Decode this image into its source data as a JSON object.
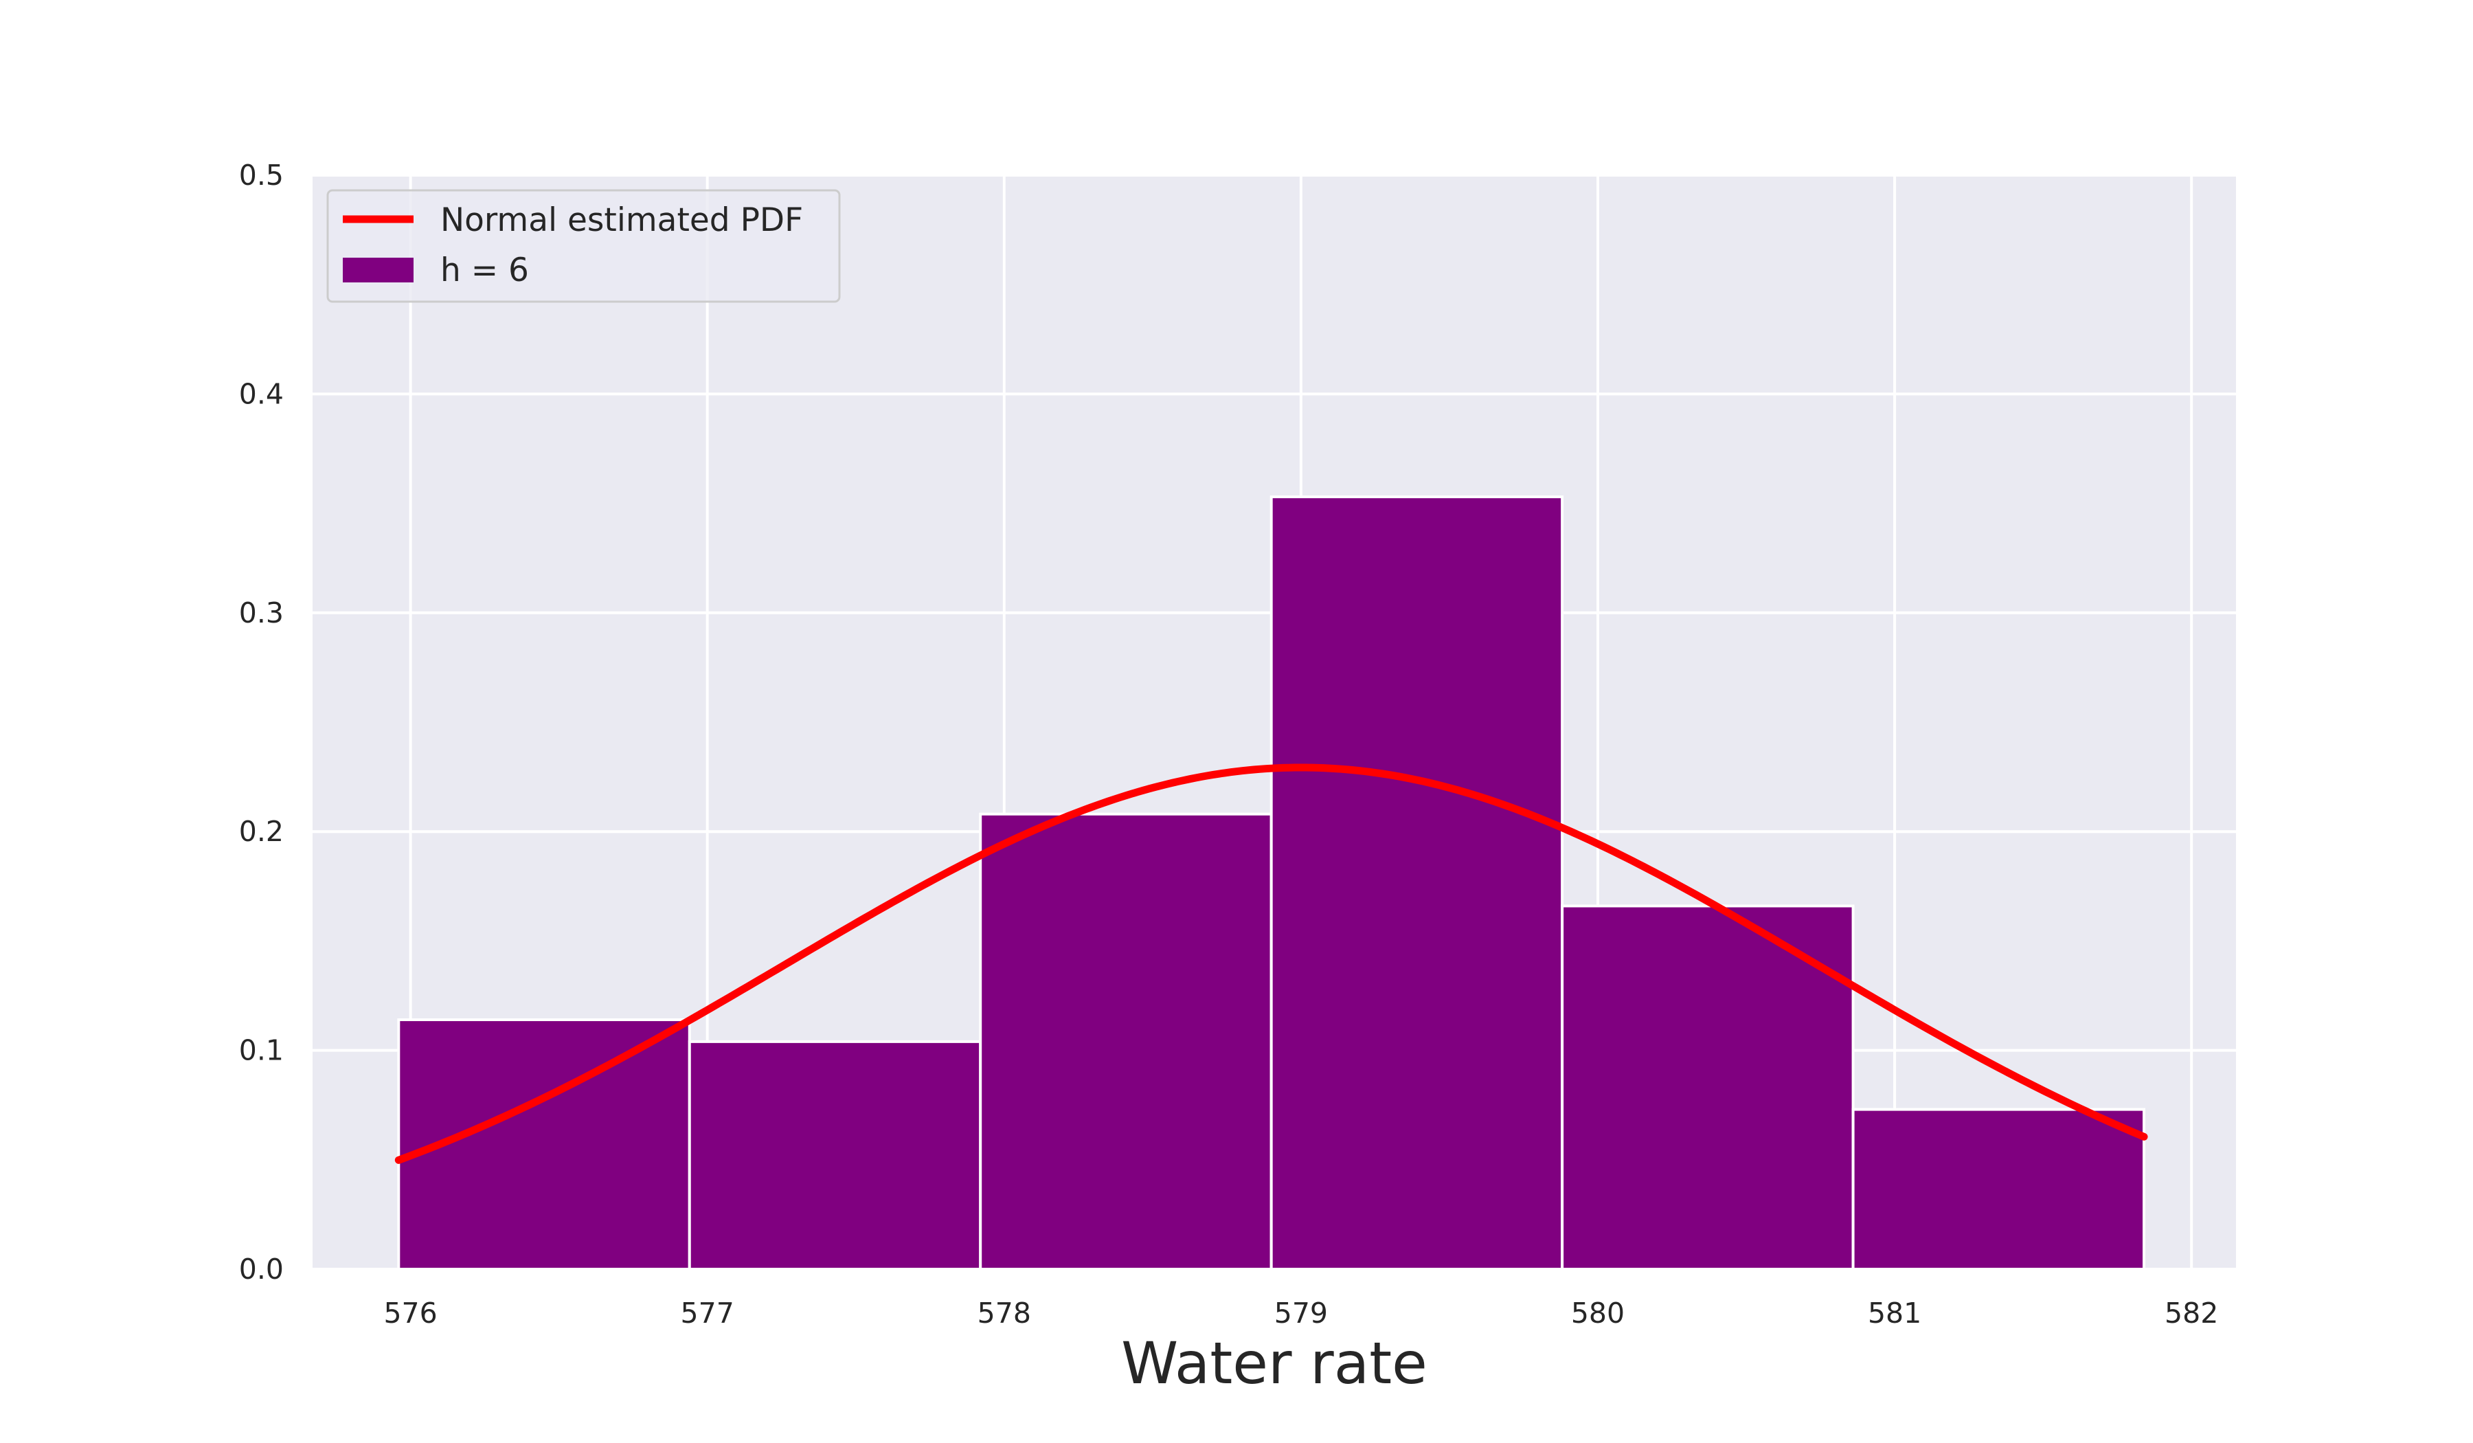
{
  "chart_data": {
    "type": "bar",
    "title": "",
    "xlabel": "Water rate",
    "ylabel": "",
    "xlim": [
      575.67,
      582.15
    ],
    "ylim": [
      0,
      0.5
    ],
    "x_ticks": [
      576,
      577,
      578,
      579,
      580,
      581,
      582
    ],
    "x_tick_labels": [
      "576",
      "577",
      "578",
      "579",
      "580",
      "581",
      "582"
    ],
    "y_ticks": [
      0.0,
      0.1,
      0.2,
      0.3,
      0.4,
      0.5
    ],
    "y_tick_labels": [
      "0.0",
      "0.1",
      "0.2",
      "0.3",
      "0.4",
      "0.5"
    ],
    "grid": true,
    "legend_position": "upper-left",
    "histogram": {
      "name": "h = 6",
      "color": "#800080",
      "bin_edges": [
        575.96,
        576.94,
        577.92,
        578.9,
        579.88,
        580.86,
        581.84
      ],
      "values": [
        0.114,
        0.104,
        0.208,
        0.353,
        0.166,
        0.073
      ]
    },
    "pdf_curve": {
      "name": "Normal estimated PDF",
      "color": "#ff0000",
      "distribution": "normal",
      "mean": 579.0,
      "std": 1.74,
      "x_range": [
        575.96,
        581.84
      ]
    },
    "colors": {
      "plot_background": "#eaeaf2",
      "grid": "#ffffff"
    }
  }
}
